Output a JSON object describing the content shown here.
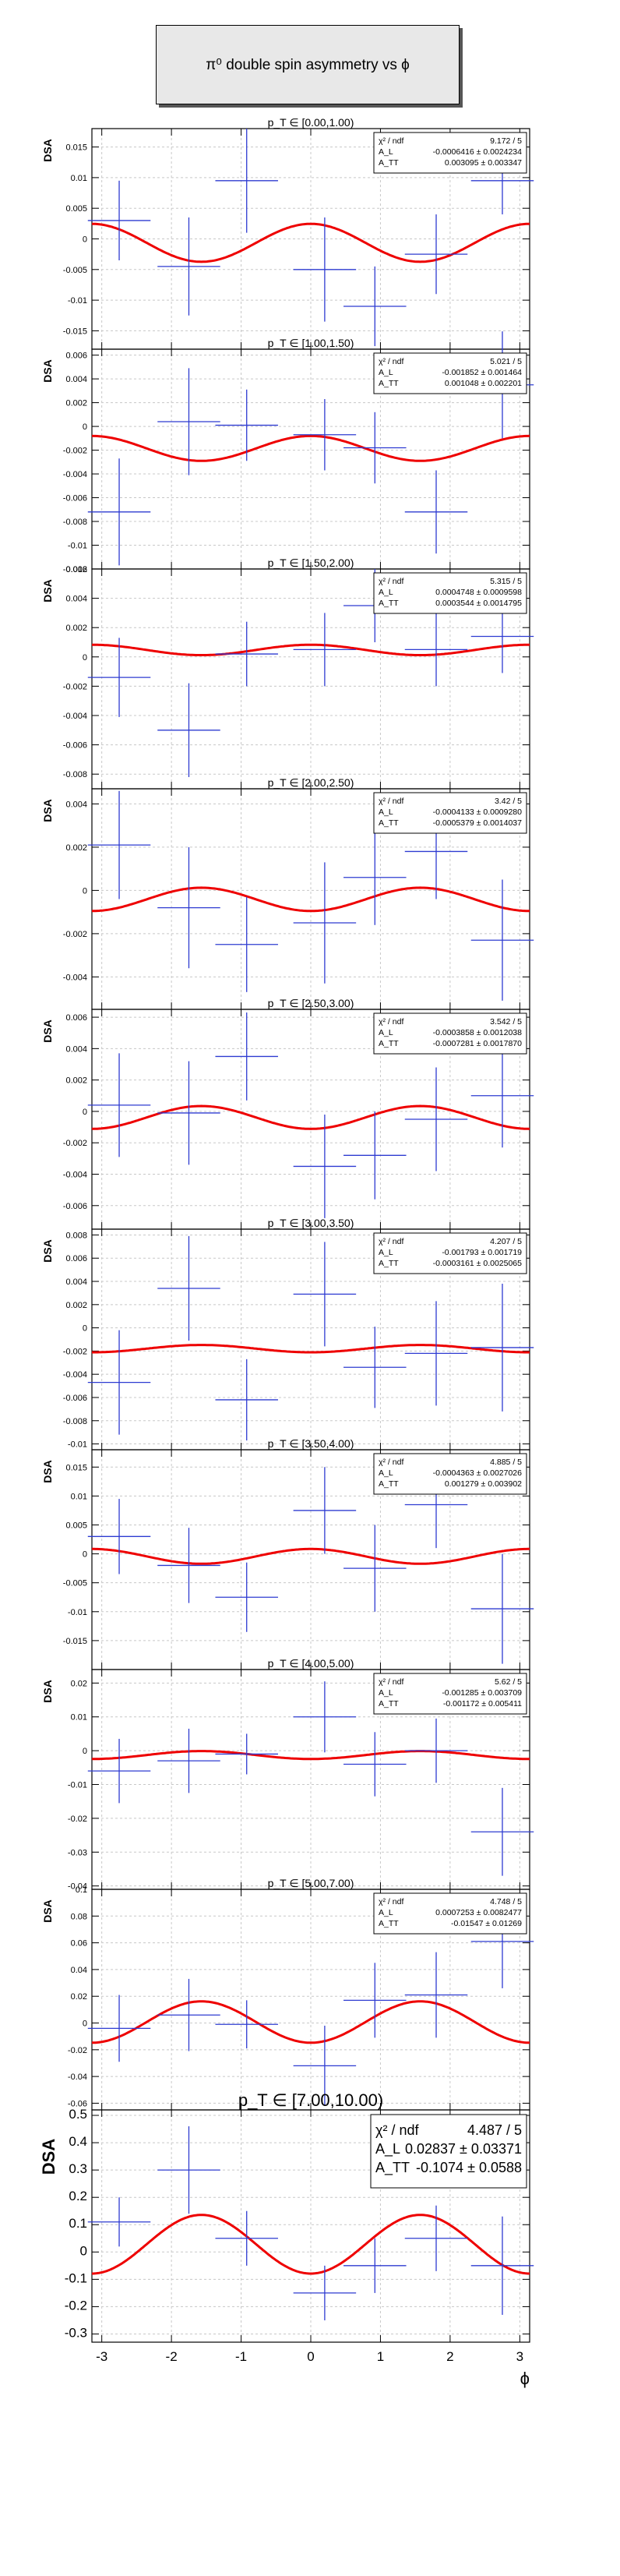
{
  "title": "π⁰ double spin asymmetry vs ϕ",
  "x_axis_label": "ϕ",
  "y_axis_label": "DSA",
  "chart_data": [
    {
      "type": "scatter",
      "bin_label": "p_T ∈ [0.00,1.00)",
      "ylim": [
        -0.018,
        0.018
      ],
      "yticks": [
        -0.015,
        -0.01,
        -0.005,
        0,
        0.005,
        0.01,
        0.015
      ],
      "ytick_labels": [
        "-0.015",
        "-0.01",
        "-0.005",
        "0",
        "0.005",
        "0.01",
        "0.015"
      ],
      "points": [
        {
          "x": -2.75,
          "y": 0.003,
          "ey": 0.0065
        },
        {
          "x": -1.75,
          "y": -0.0045,
          "ey": 0.008
        },
        {
          "x": -0.92,
          "y": 0.0095,
          "ey": 0.0085
        },
        {
          "x": 0.2,
          "y": -0.005,
          "ey": 0.0085
        },
        {
          "x": 0.92,
          "y": -0.011,
          "ey": 0.0065
        },
        {
          "x": 1.8,
          "y": -0.0025,
          "ey": 0.0065
        },
        {
          "x": 2.75,
          "y": 0.0095,
          "ey": 0.0055
        }
      ],
      "fit": {
        "chi2_ndf": "9.172 / 5",
        "AL": "-0.0006416 ± 0.0024234",
        "ATT": "0.003095 ± 0.003347",
        "AL_value": -0.0006416,
        "ATT_value": 0.003095
      }
    },
    {
      "type": "scatter",
      "bin_label": "p_T ∈ [1.00,1.50)",
      "ylim": [
        -0.012,
        0.0065
      ],
      "yticks": [
        -0.012,
        -0.01,
        -0.008,
        -0.006,
        -0.004,
        -0.002,
        0,
        0.002,
        0.004,
        0.006
      ],
      "ytick_labels": [
        "-0.012",
        "-0.01",
        "-0.008",
        "-0.006",
        "-0.004",
        "-0.002",
        "0",
        "0.002",
        "0.004",
        "0.006"
      ],
      "points": [
        {
          "x": -2.75,
          "y": -0.0072,
          "ey": 0.0045
        },
        {
          "x": -1.75,
          "y": 0.0004,
          "ey": 0.0045
        },
        {
          "x": -0.92,
          "y": 0.0001,
          "ey": 0.003
        },
        {
          "x": 0.2,
          "y": -0.0007,
          "ey": 0.003
        },
        {
          "x": 0.92,
          "y": -0.0018,
          "ey": 0.003
        },
        {
          "x": 1.8,
          "y": -0.0072,
          "ey": 0.0035
        },
        {
          "x": 2.75,
          "y": 0.0035,
          "ey": 0.0045
        }
      ],
      "fit": {
        "chi2_ndf": "5.021 / 5",
        "AL": "-0.001852 ± 0.001464",
        "ATT": "0.001048 ± 0.002201",
        "AL_value": -0.001852,
        "ATT_value": 0.001048
      }
    },
    {
      "type": "scatter",
      "bin_label": "p_T ∈ [1.50,2.00)",
      "ylim": [
        -0.009,
        0.006
      ],
      "yticks": [
        -0.008,
        -0.006,
        -0.004,
        -0.002,
        0,
        0.002,
        0.004,
        0.006
      ],
      "ytick_labels": [
        "-0.008",
        "-0.006",
        "-0.004",
        "-0.002",
        "0",
        "0.002",
        "0.004",
        "0.006"
      ],
      "points": [
        {
          "x": -2.75,
          "y": -0.0014,
          "ey": 0.0027
        },
        {
          "x": -1.75,
          "y": -0.005,
          "ey": 0.0032
        },
        {
          "x": -0.92,
          "y": 0.0002,
          "ey": 0.0022
        },
        {
          "x": 0.2,
          "y": 0.0005,
          "ey": 0.0025
        },
        {
          "x": 0.92,
          "y": 0.0035,
          "ey": 0.0025
        },
        {
          "x": 1.8,
          "y": 0.0005,
          "ey": 0.0025
        },
        {
          "x": 2.75,
          "y": 0.0014,
          "ey": 0.0025
        }
      ],
      "fit": {
        "chi2_ndf": "5.315 / 5",
        "AL": "0.0004748 ± 0.0009598",
        "ATT": "0.0003544 ± 0.0014795",
        "AL_value": 0.0004748,
        "ATT_value": 0.0003544
      }
    },
    {
      "type": "scatter",
      "bin_label": "p_T ∈ [2.00,2.50)",
      "ylim": [
        -0.0055,
        0.0047
      ],
      "yticks": [
        -0.004,
        -0.002,
        0,
        0.002,
        0.004
      ],
      "ytick_labels": [
        "-0.004",
        "-0.002",
        "0",
        "0.002",
        "0.004"
      ],
      "points": [
        {
          "x": -2.75,
          "y": 0.0021,
          "ey": 0.0025
        },
        {
          "x": -1.75,
          "y": -0.0008,
          "ey": 0.0028
        },
        {
          "x": -0.92,
          "y": -0.0025,
          "ey": 0.0022
        },
        {
          "x": 0.2,
          "y": -0.0015,
          "ey": 0.0028
        },
        {
          "x": 0.92,
          "y": 0.0006,
          "ey": 0.0022
        },
        {
          "x": 1.8,
          "y": 0.0018,
          "ey": 0.0022
        },
        {
          "x": 2.75,
          "y": -0.0023,
          "ey": 0.0028
        }
      ],
      "fit": {
        "chi2_ndf": "3.42 / 5",
        "AL": "-0.0004133 ± 0.0009280",
        "ATT": "-0.0005379 ± 0.0014037",
        "AL_value": -0.0004133,
        "ATT_value": -0.0005379
      }
    },
    {
      "type": "scatter",
      "bin_label": "p_T ∈ [2.50,3.00)",
      "ylim": [
        -0.0075,
        0.0065
      ],
      "yticks": [
        -0.006,
        -0.004,
        -0.002,
        0,
        0.002,
        0.004,
        0.006
      ],
      "ytick_labels": [
        "-0.006",
        "-0.004",
        "-0.002",
        "0",
        "0.002",
        "0.004",
        "0.006"
      ],
      "points": [
        {
          "x": -2.75,
          "y": 0.0004,
          "ey": 0.0033
        },
        {
          "x": -1.75,
          "y": -0.0001,
          "ey": 0.0033
        },
        {
          "x": -0.92,
          "y": 0.0035,
          "ey": 0.0028
        },
        {
          "x": 0.2,
          "y": -0.0035,
          "ey": 0.0033
        },
        {
          "x": 0.92,
          "y": -0.0028,
          "ey": 0.0028
        },
        {
          "x": 1.8,
          "y": -0.0005,
          "ey": 0.0033
        },
        {
          "x": 2.75,
          "y": 0.001,
          "ey": 0.0033
        }
      ],
      "fit": {
        "chi2_ndf": "3.542 / 5",
        "AL": "-0.0003858 ± 0.0012038",
        "ATT": "-0.0007281 ± 0.0017870",
        "AL_value": -0.0003858,
        "ATT_value": -0.0007281
      }
    },
    {
      "type": "scatter",
      "bin_label": "p_T ∈ [3.00,3.50)",
      "ylim": [
        -0.0105,
        0.0085
      ],
      "yticks": [
        -0.01,
        -0.008,
        -0.006,
        -0.004,
        -0.002,
        0,
        0.002,
        0.004,
        0.006,
        0.008
      ],
      "ytick_labels": [
        "-0.01",
        "-0.008",
        "-0.006",
        "-0.004",
        "-0.002",
        "0",
        "0.002",
        "0.004",
        "0.006",
        "0.008"
      ],
      "points": [
        {
          "x": -2.75,
          "y": -0.0047,
          "ey": 0.0045
        },
        {
          "x": -1.75,
          "y": 0.0034,
          "ey": 0.0045
        },
        {
          "x": -0.92,
          "y": -0.0062,
          "ey": 0.0035
        },
        {
          "x": 0.2,
          "y": 0.0029,
          "ey": 0.0045
        },
        {
          "x": 0.92,
          "y": -0.0034,
          "ey": 0.0035
        },
        {
          "x": 1.8,
          "y": -0.0022,
          "ey": 0.0045
        },
        {
          "x": 2.75,
          "y": -0.0017,
          "ey": 0.0055
        }
      ],
      "fit": {
        "chi2_ndf": "4.207 / 5",
        "AL": "-0.001793 ± 0.001719",
        "ATT": "-0.0003161 ± 0.0025065",
        "AL_value": -0.001793,
        "ATT_value": -0.0003161
      }
    },
    {
      "type": "scatter",
      "bin_label": "p_T ∈ [3.50,4.00)",
      "ylim": [
        -0.02,
        0.018
      ],
      "yticks": [
        -0.015,
        -0.01,
        -0.005,
        0,
        0.005,
        0.01,
        0.015
      ],
      "ytick_labels": [
        "-0.015",
        "-0.01",
        "-0.005",
        "0",
        "0.005",
        "0.01",
        "0.015"
      ],
      "points": [
        {
          "x": -2.75,
          "y": 0.003,
          "ey": 0.0065
        },
        {
          "x": -1.75,
          "y": -0.002,
          "ey": 0.0065
        },
        {
          "x": -0.92,
          "y": -0.0075,
          "ey": 0.006
        },
        {
          "x": 0.2,
          "y": 0.0075,
          "ey": 0.0075
        },
        {
          "x": 0.92,
          "y": -0.0025,
          "ey": 0.0075
        },
        {
          "x": 1.8,
          "y": 0.0085,
          "ey": 0.0075
        },
        {
          "x": 2.75,
          "y": -0.0095,
          "ey": 0.0095
        }
      ],
      "fit": {
        "chi2_ndf": "4.885 / 5",
        "AL": "-0.0004363 ± 0.0027026",
        "ATT": "0.001279 ± 0.003902",
        "AL_value": -0.0004363,
        "ATT_value": 0.001279
      }
    },
    {
      "type": "scatter",
      "bin_label": "p_T ∈ [4.00,5.00)",
      "ylim": [
        -0.041,
        0.024
      ],
      "yticks": [
        -0.04,
        -0.03,
        -0.02,
        -0.01,
        0,
        0.01,
        0.02
      ],
      "ytick_labels": [
        "-0.04",
        "-0.03",
        "-0.02",
        "-0.01",
        "0",
        "0.01",
        "0.02"
      ],
      "points": [
        {
          "x": -2.75,
          "y": -0.006,
          "ey": 0.0095
        },
        {
          "x": -1.75,
          "y": -0.003,
          "ey": 0.0095
        },
        {
          "x": -0.92,
          "y": -0.001,
          "ey": 0.006
        },
        {
          "x": 0.2,
          "y": 0.01,
          "ey": 0.0105
        },
        {
          "x": 0.92,
          "y": -0.004,
          "ey": 0.0095
        },
        {
          "x": 1.8,
          "y": 0.0,
          "ey": 0.0095
        },
        {
          "x": 2.75,
          "y": -0.024,
          "ey": 0.013
        }
      ],
      "fit": {
        "chi2_ndf": "5.62 / 5",
        "AL": "-0.001285 ± 0.003709",
        "ATT": "-0.001172 ± 0.005411",
        "AL_value": -0.001285,
        "ATT_value": -0.001172
      }
    },
    {
      "type": "scatter",
      "bin_label": "p_T ∈ [5.00,7.00)",
      "ylim": [
        -0.065,
        0.1
      ],
      "yticks": [
        -0.06,
        -0.04,
        -0.02,
        0,
        0.02,
        0.04,
        0.06,
        0.08,
        0.1
      ],
      "ytick_labels": [
        "-0.06",
        "-0.04",
        "-0.02",
        "0",
        "0.02",
        "0.04",
        "0.06",
        "0.08",
        "0.1"
      ],
      "points": [
        {
          "x": -2.75,
          "y": -0.004,
          "ey": 0.025
        },
        {
          "x": -1.75,
          "y": 0.006,
          "ey": 0.027
        },
        {
          "x": -0.92,
          "y": -0.001,
          "ey": 0.018
        },
        {
          "x": 0.2,
          "y": -0.032,
          "ey": 0.03
        },
        {
          "x": 0.92,
          "y": 0.017,
          "ey": 0.028
        },
        {
          "x": 1.8,
          "y": 0.021,
          "ey": 0.032
        },
        {
          "x": 2.75,
          "y": 0.061,
          "ey": 0.035
        }
      ],
      "fit": {
        "chi2_ndf": "4.748 / 5",
        "AL": "0.0007253 ± 0.0082477",
        "ATT": "-0.01547 ± 0.01269",
        "AL_value": 0.0007253,
        "ATT_value": -0.01547
      }
    },
    {
      "type": "scatter",
      "bin_label": "p_T ∈ [7.00,10.00)",
      "ylim": [
        -0.33,
        0.52
      ],
      "yticks": [
        -0.3,
        -0.2,
        -0.1,
        0,
        0.1,
        0.2,
        0.3,
        0.4,
        0.5
      ],
      "ytick_labels": [
        "-0.3",
        "-0.2",
        "-0.1",
        "0",
        "0.1",
        "0.2",
        "0.3",
        "0.4",
        "0.5"
      ],
      "points": [
        {
          "x": -2.75,
          "y": 0.11,
          "ey": 0.09
        },
        {
          "x": -1.75,
          "y": 0.3,
          "ey": 0.16
        },
        {
          "x": -0.92,
          "y": 0.05,
          "ey": 0.1
        },
        {
          "x": 0.2,
          "y": -0.15,
          "ey": 0.1
        },
        {
          "x": 0.92,
          "y": -0.05,
          "ey": 0.1
        },
        {
          "x": 1.8,
          "y": 0.05,
          "ey": 0.12
        },
        {
          "x": 2.75,
          "y": -0.05,
          "ey": 0.18
        }
      ],
      "fit": {
        "chi2_ndf": "4.487 / 5",
        "AL": "0.02837 ± 0.03371",
        "ATT": "-0.1074 ± 0.0588",
        "AL_value": 0.02837,
        "ATT_value": -0.1074
      }
    }
  ],
  "x_axis": {
    "xlim": [
      -3.14159,
      3.14159
    ],
    "ticks": [
      -3,
      -2,
      -1,
      0,
      1,
      2,
      3
    ],
    "tick_labels": [
      "-3",
      "-2",
      "-1",
      "0",
      "1",
      "2",
      "3"
    ]
  },
  "colors": {
    "points": "#2e3bd1",
    "fit": "#ee0000",
    "grid": "#c8c8c8"
  }
}
